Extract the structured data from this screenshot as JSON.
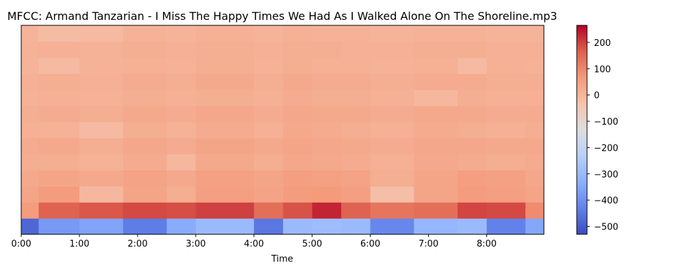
{
  "chart_data": {
    "type": "heatmap",
    "title": "MFCC: Armand Tanzarian - I Miss The Happy Times We Had As I Walked Alone On The Shoreline.mp3",
    "xlabel": "Time",
    "ylabel": "",
    "x_unit": "seconds",
    "xlim": [
      0,
      539
    ],
    "x_ticks": [
      {
        "value": 0,
        "label": "0:00"
      },
      {
        "value": 60,
        "label": "1:00"
      },
      {
        "value": 120,
        "label": "2:00"
      },
      {
        "value": 180,
        "label": "3:00"
      },
      {
        "value": 240,
        "label": "4:00"
      },
      {
        "value": 300,
        "label": "5:00"
      },
      {
        "value": 360,
        "label": "6:00"
      },
      {
        "value": 420,
        "label": "7:00"
      },
      {
        "value": 480,
        "label": "8:00"
      }
    ],
    "n_coefficients": 13,
    "time_segments": [
      0,
      18,
      60,
      105,
      150,
      180,
      240,
      270,
      300,
      330,
      360,
      405,
      450,
      480,
      520,
      539
    ],
    "values": [
      [
        -480,
        -380,
        -360,
        -440,
        -340,
        -300,
        -450,
        -300,
        -290,
        -300,
        -420,
        -310,
        -300,
        -430,
        -350
      ],
      [
        60,
        160,
        175,
        190,
        185,
        200,
        140,
        180,
        230,
        160,
        130,
        140,
        195,
        190,
        90
      ],
      [
        40,
        60,
        -5,
        40,
        20,
        55,
        45,
        60,
        65,
        55,
        -20,
        40,
        60,
        55,
        40
      ],
      [
        30,
        40,
        30,
        45,
        30,
        50,
        40,
        55,
        50,
        45,
        20,
        40,
        55,
        50,
        35
      ],
      [
        20,
        20,
        10,
        25,
        -5,
        30,
        20,
        35,
        30,
        25,
        15,
        30,
        25,
        20,
        25
      ],
      [
        25,
        30,
        20,
        35,
        25,
        40,
        30,
        40,
        35,
        30,
        25,
        35,
        35,
        30,
        30
      ],
      [
        15,
        10,
        -10,
        20,
        10,
        25,
        15,
        30,
        25,
        20,
        15,
        25,
        20,
        15,
        20
      ],
      [
        20,
        25,
        20,
        30,
        25,
        35,
        25,
        35,
        30,
        30,
        25,
        30,
        30,
        25,
        25
      ],
      [
        10,
        15,
        10,
        20,
        15,
        20,
        15,
        25,
        20,
        20,
        15,
        -5,
        20,
        15,
        15
      ],
      [
        15,
        20,
        15,
        25,
        20,
        30,
        20,
        30,
        25,
        25,
        20,
        25,
        25,
        20,
        20
      ],
      [
        5,
        -10,
        10,
        15,
        10,
        20,
        10,
        20,
        15,
        15,
        10,
        15,
        -10,
        15,
        10
      ],
      [
        10,
        15,
        10,
        20,
        15,
        20,
        15,
        20,
        20,
        15,
        15,
        20,
        20,
        15,
        15
      ],
      [
        5,
        -15,
        -10,
        10,
        5,
        15,
        5,
        15,
        10,
        10,
        5,
        10,
        10,
        5,
        5
      ]
    ],
    "colorbar": {
      "colormap": "coolwarm",
      "vmin": -530,
      "vmax": 265,
      "ticks": [
        {
          "value": 200,
          "label": "200"
        },
        {
          "value": 100,
          "label": "100"
        },
        {
          "value": 0,
          "label": "0"
        },
        {
          "value": -100,
          "label": "−100"
        },
        {
          "value": -200,
          "label": "−200"
        },
        {
          "value": -300,
          "label": "−300"
        },
        {
          "value": -400,
          "label": "−400"
        },
        {
          "value": -500,
          "label": "−500"
        }
      ]
    },
    "grid": false
  }
}
